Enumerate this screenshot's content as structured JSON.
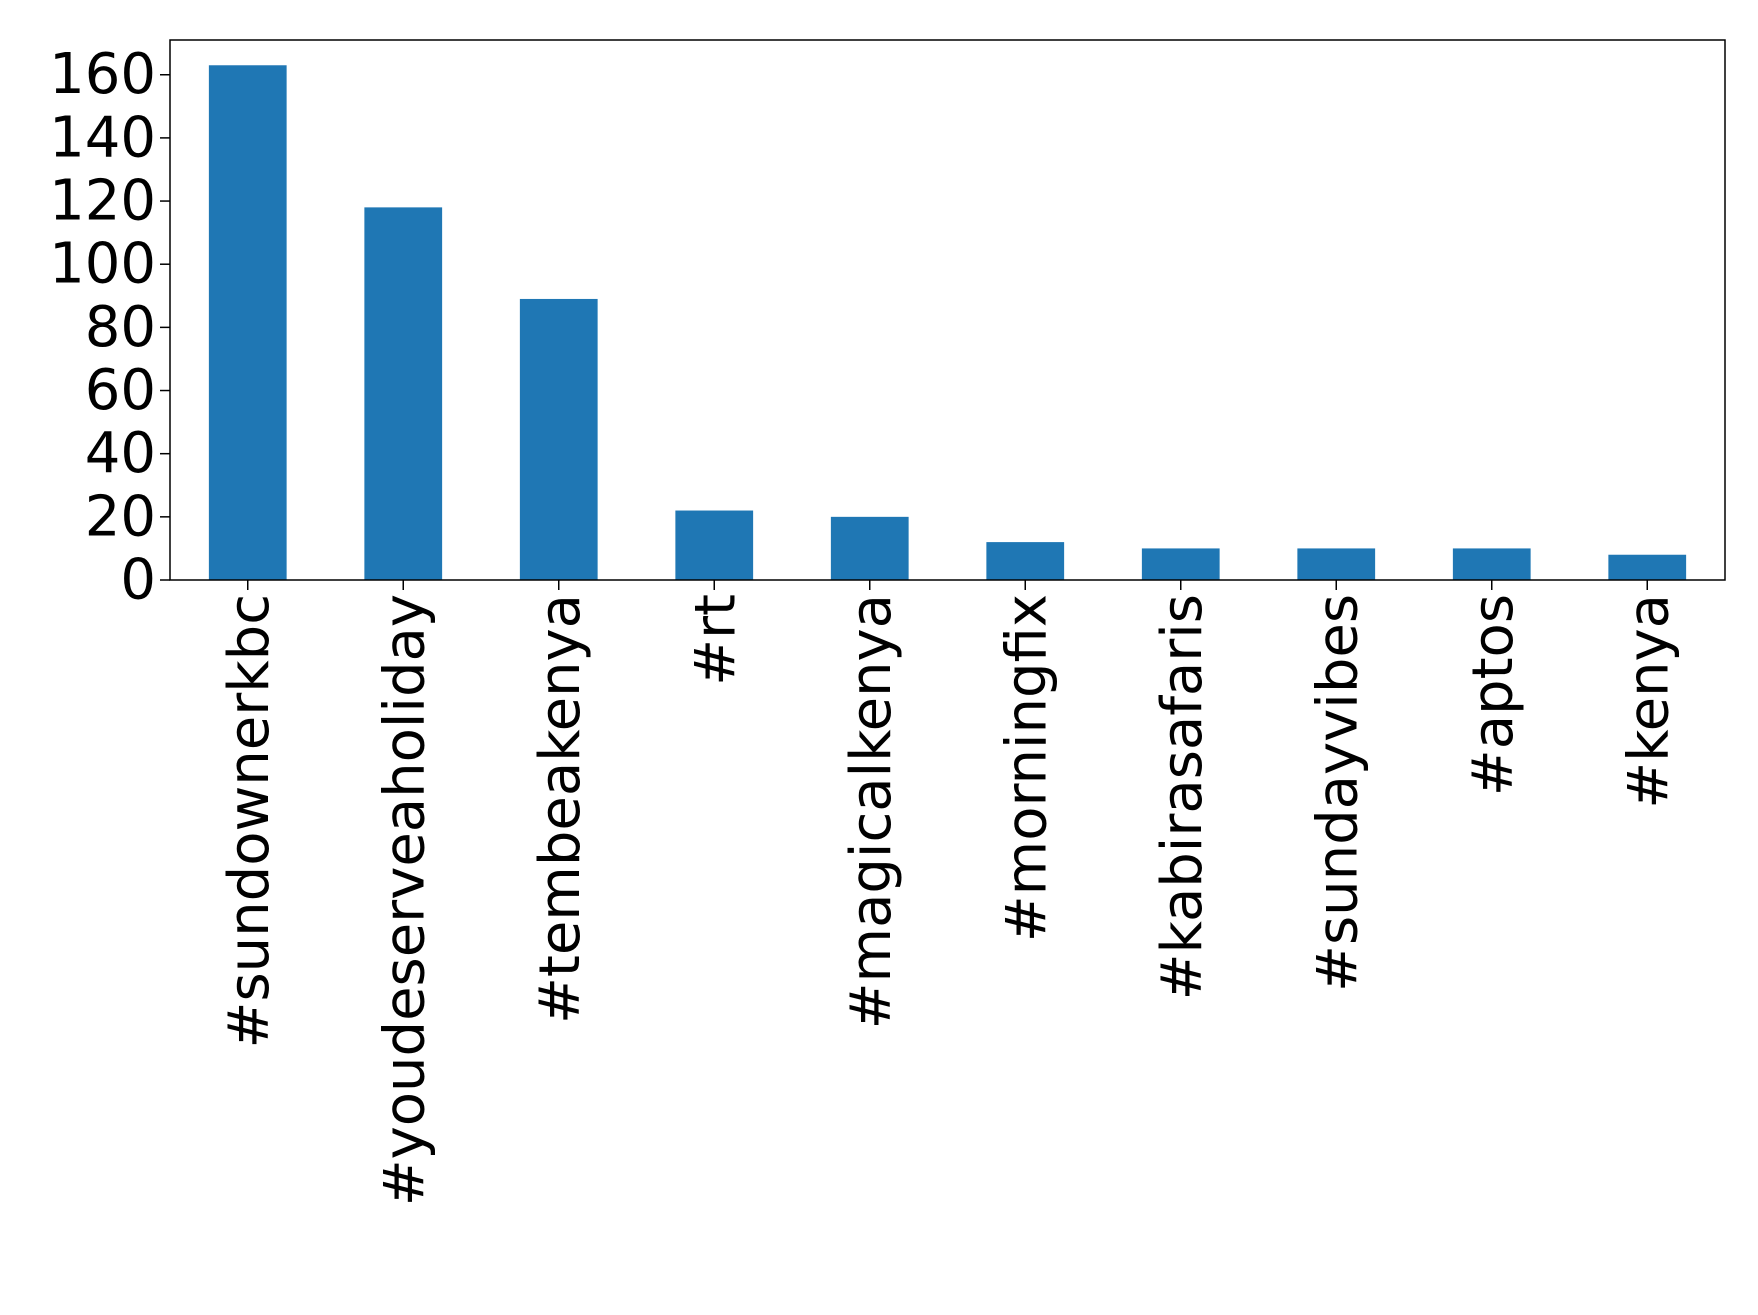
{
  "chart_data": {
    "type": "bar",
    "title": "",
    "xlabel": "",
    "ylabel": "",
    "categories": [
      "#sundownerkbc",
      "#youdeserveaholiday",
      "#tembeakenya",
      "#rt",
      "#magicalkenya",
      "#morningfix",
      "#kabirasafaris",
      "#sundayvibes",
      "#aptos",
      "#kenya"
    ],
    "series": [
      {
        "values": [
          163,
          118,
          89,
          22,
          20,
          12,
          10,
          10,
          10,
          8
        ]
      }
    ],
    "yticks": [
      0,
      20,
      40,
      60,
      80,
      100,
      120,
      140,
      160
    ],
    "ylim": [
      0,
      171
    ],
    "grid": false,
    "legend": "none",
    "bar_color": "#1f77b4",
    "axis_color": "#000000"
  }
}
